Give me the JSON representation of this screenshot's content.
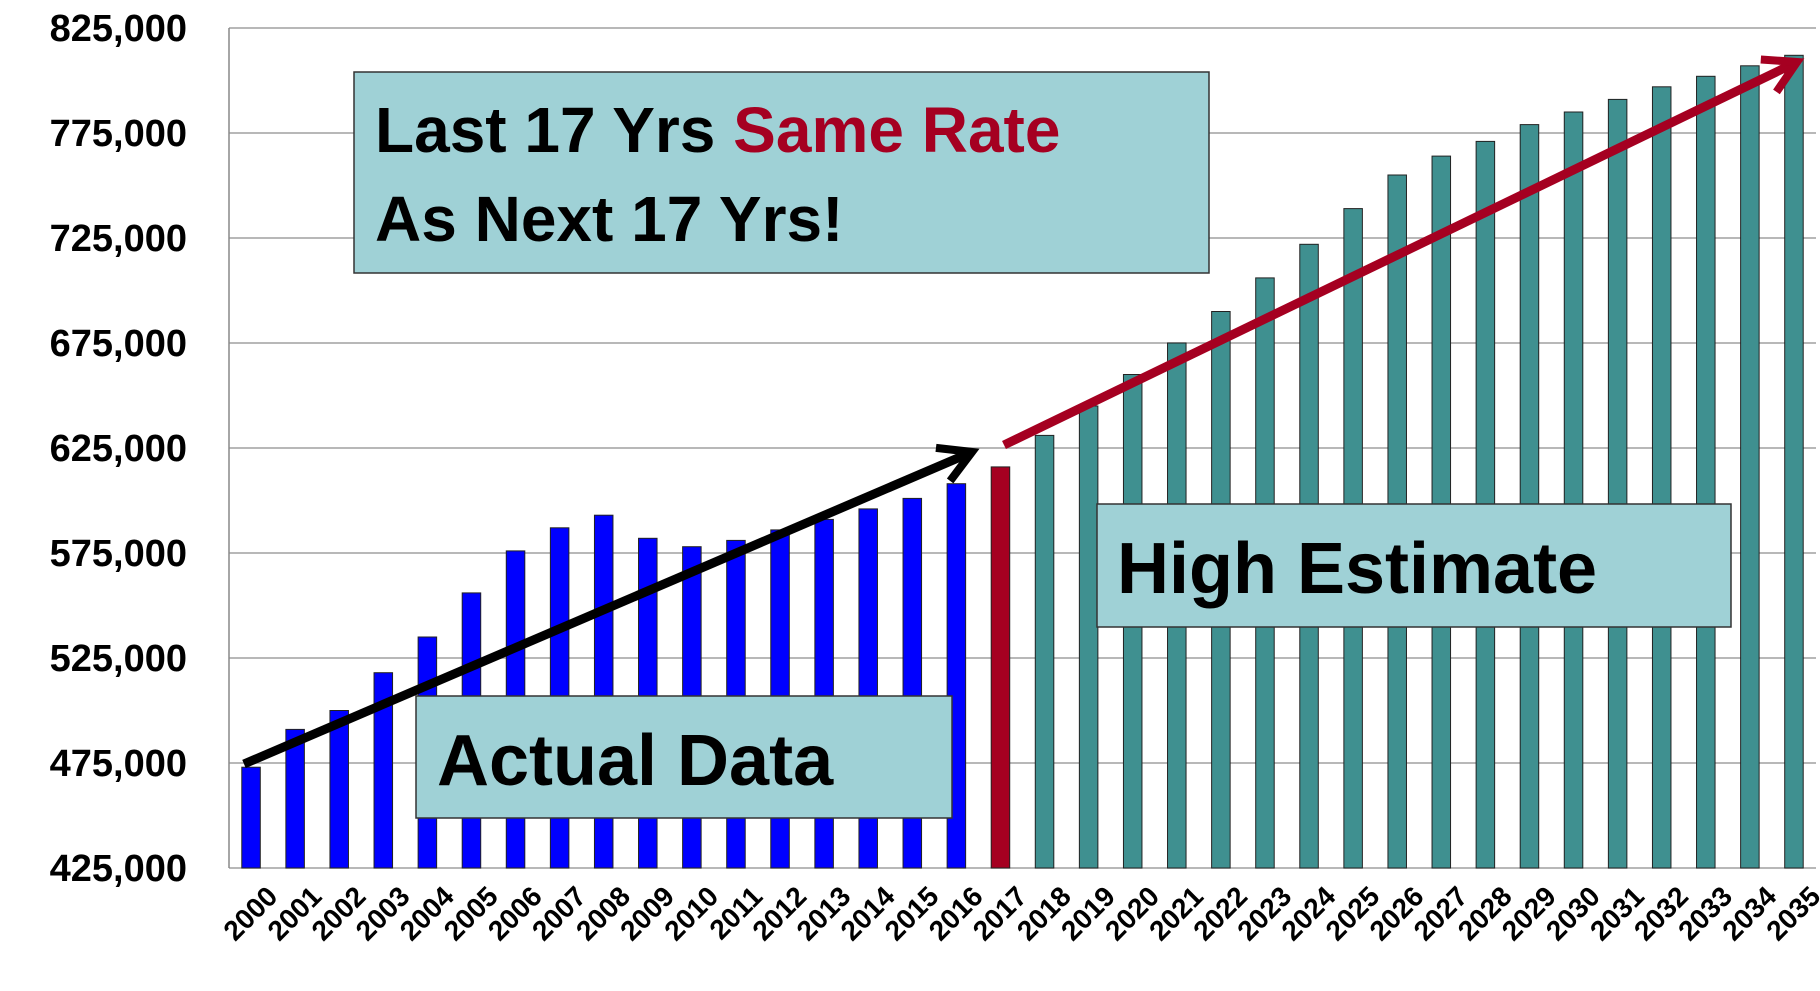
{
  "chart_data": {
    "type": "bar",
    "categories": [
      "2000",
      "2001",
      "2002",
      "2003",
      "2004",
      "2005",
      "2006",
      "2007",
      "2008",
      "2009",
      "2010",
      "2011",
      "2012",
      "2013",
      "2014",
      "2015",
      "2016",
      "2017",
      "2018",
      "2019",
      "2020",
      "2021",
      "2022",
      "2023",
      "2024",
      "2025",
      "2026",
      "2027",
      "2028",
      "2029",
      "2030",
      "2031",
      "2032",
      "2033",
      "2034",
      "2035"
    ],
    "values": [
      473000,
      491000,
      500000,
      518000,
      535000,
      556000,
      576000,
      587000,
      593000,
      582000,
      578000,
      581000,
      586000,
      591000,
      596000,
      601000,
      608000,
      616000,
      631000,
      645000,
      660000,
      675000,
      690000,
      706000,
      722000,
      739000,
      755000,
      764000,
      771000,
      779000,
      785000,
      791000,
      797000,
      802000,
      807000,
      812000
    ],
    "colors": [
      "#0000ff",
      "#0000ff",
      "#0000ff",
      "#0000ff",
      "#0000ff",
      "#0000ff",
      "#0000ff",
      "#0000ff",
      "#0000ff",
      "#0000ff",
      "#0000ff",
      "#0000ff",
      "#0000ff",
      "#0000ff",
      "#0000ff",
      "#0000ff",
      "#0000ff",
      "#a50021",
      "#3f9090",
      "#3f9090",
      "#3f9090",
      "#3f9090",
      "#3f9090",
      "#3f9090",
      "#3f9090",
      "#3f9090",
      "#3f9090",
      "#3f9090",
      "#3f9090",
      "#3f9090",
      "#3f9090",
      "#3f9090",
      "#3f9090",
      "#3f9090",
      "#3f9090",
      "#3f9090"
    ],
    "ylim": [
      425000,
      825000
    ],
    "yticks": [
      {
        "value": 425000,
        "label": "425,000"
      },
      {
        "value": 475000,
        "label": "475,000"
      },
      {
        "value": 525000,
        "label": "525,000"
      },
      {
        "value": 575000,
        "label": "575,000"
      },
      {
        "value": 625000,
        "label": "625,000"
      },
      {
        "value": 675000,
        "label": "675,000"
      },
      {
        "value": 725000,
        "label": "725,000"
      },
      {
        "value": 775000,
        "label": "775,000"
      },
      {
        "value": 825000,
        "label": "825,000"
      }
    ],
    "grid": true,
    "annotations": {
      "rate_line1_a": "Last 17 Yrs",
      "rate_line1_b": "Same Rate",
      "rate_line2": "As Next 17 Yrs!",
      "actual": "Actual Data",
      "estimate": "High Estimate"
    }
  }
}
